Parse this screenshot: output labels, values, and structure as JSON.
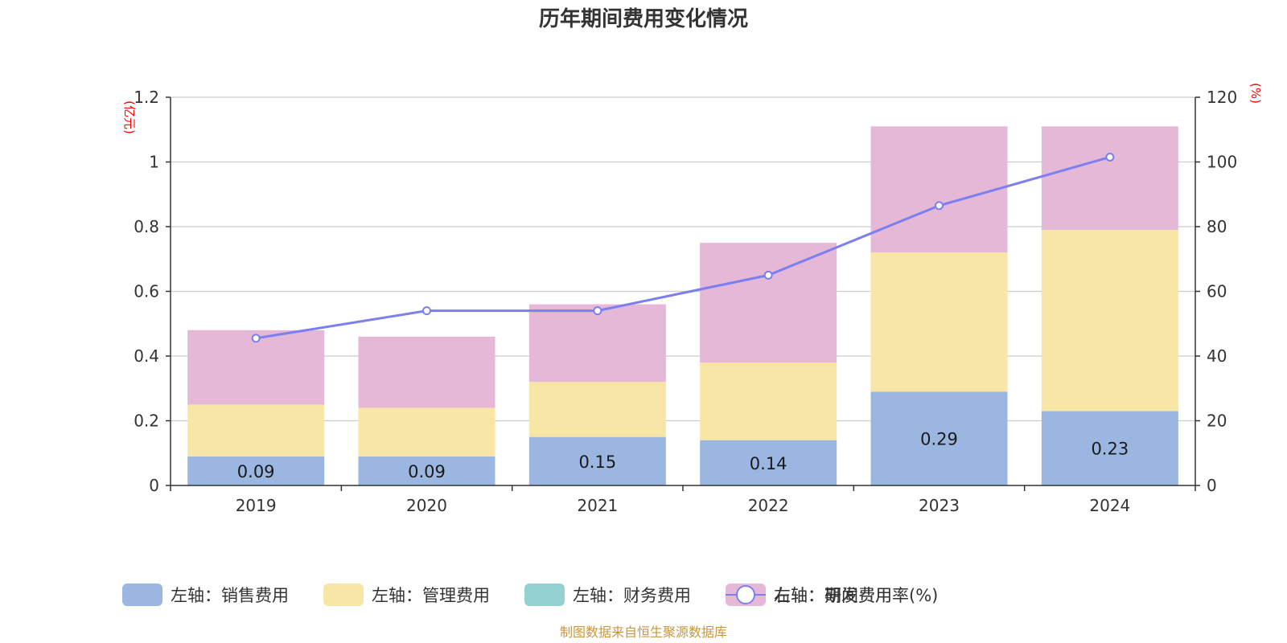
{
  "chart_data": {
    "type": "bar",
    "stacked": true,
    "title": "历年期间费用变化情况",
    "categories": [
      "2019",
      "2020",
      "2021",
      "2022",
      "2023",
      "2024"
    ],
    "left_axis": {
      "unit": "(亿元)",
      "ylim": [
        0,
        1.2
      ],
      "ticks": [
        "0",
        "0.2",
        "0.4",
        "0.6",
        "0.8",
        "1",
        "1.2"
      ]
    },
    "right_axis": {
      "unit": "(%)",
      "ylim": [
        0,
        120
      ],
      "ticks": [
        "0",
        "20",
        "40",
        "60",
        "80",
        "100",
        "120"
      ]
    },
    "series": [
      {
        "name": "左轴：销售费用",
        "color": "#9bb7e1",
        "axis": "left",
        "values": [
          0.09,
          0.09,
          0.15,
          0.14,
          0.29,
          0.23
        ],
        "labels": [
          "0.09",
          "0.09",
          "0.15",
          "0.14",
          "0.29",
          "0.23"
        ]
      },
      {
        "name": "左轴：管理费用",
        "color": "#f8e6a6",
        "axis": "left",
        "values": [
          0.16,
          0.15,
          0.17,
          0.24,
          0.43,
          0.56
        ]
      },
      {
        "name": "左轴：财务费用",
        "color": "#94d2d1",
        "axis": "left",
        "values": [
          0,
          0,
          0,
          0,
          0,
          0
        ]
      },
      {
        "name": "左轴：研发费用",
        "color": "#e6b8d8",
        "axis": "left",
        "values": [
          0.23,
          0.22,
          0.24,
          0.37,
          0.39,
          0.32
        ]
      }
    ],
    "line": {
      "name": "右轴：期间费用率(%)",
      "color": "#7b7ff0",
      "axis": "right",
      "values": [
        45.5,
        54,
        54,
        65,
        86.5,
        101.5
      ]
    },
    "grid": true,
    "legend_position": "bottom"
  },
  "source": "制图数据来自恒生聚源数据库"
}
